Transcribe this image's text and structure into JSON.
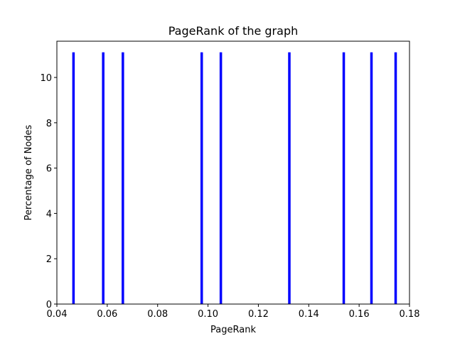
{
  "chart_data": {
    "type": "bar",
    "title": "PageRank of the graph",
    "xlabel": "PageRank",
    "ylabel": "Percentage of Nodes",
    "xlim": [
      0.04,
      0.18
    ],
    "ylim": [
      0,
      11.6
    ],
    "xticks": [
      0.04,
      0.06,
      0.08,
      0.1,
      0.12,
      0.14,
      0.16,
      0.18
    ],
    "xtick_labels": [
      "0.04",
      "0.06",
      "0.08",
      "0.10",
      "0.12",
      "0.14",
      "0.16",
      "0.18"
    ],
    "yticks": [
      0,
      2,
      4,
      6,
      8,
      10
    ],
    "ytick_labels": [
      "0",
      "2",
      "4",
      "6",
      "8",
      "10"
    ],
    "grid": false,
    "bar_color": "#0000ff",
    "x": [
      0.0466,
      0.0584,
      0.0662,
      0.0975,
      0.1051,
      0.1323,
      0.1539,
      0.1649,
      0.1745
    ],
    "values": [
      11.11,
      11.11,
      11.11,
      11.11,
      11.11,
      11.11,
      11.11,
      11.11,
      11.11
    ]
  }
}
